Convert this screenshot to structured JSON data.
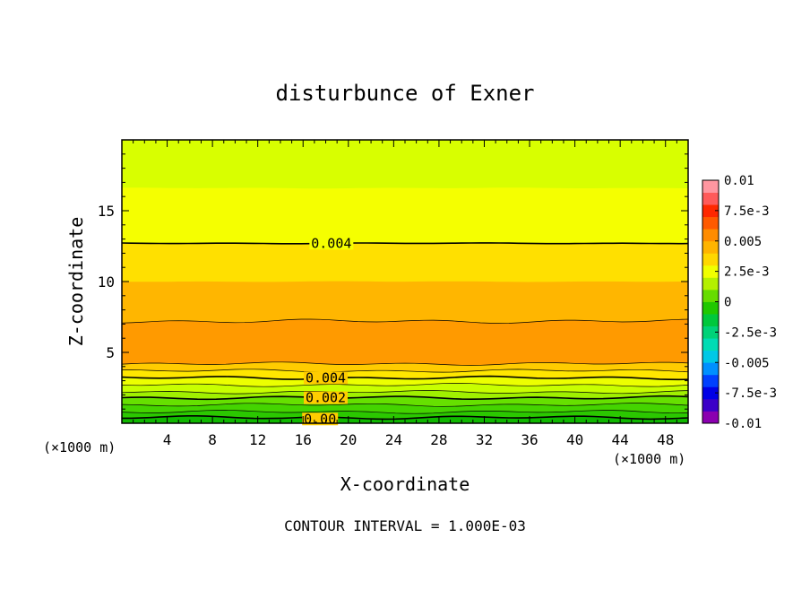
{
  "chart_data": {
    "type": "contour",
    "title": "disturbunce of Exner",
    "xlabel": "X-coordinate",
    "ylabel": "Z-coordinate",
    "x_unit_note": "(×1000 m)",
    "x_unit_note_bottom": "(×1000 m)",
    "footer": "CONTOUR INTERVAL = 1.000E-03",
    "xlim": [
      0,
      50
    ],
    "ylim": [
      0,
      20
    ],
    "x_ticks": [
      4,
      8,
      12,
      16,
      20,
      24,
      28,
      32,
      36,
      40,
      44,
      48
    ],
    "y_ticks": [
      5,
      10,
      15
    ],
    "contour_interval": 0.001,
    "contour_labels": [
      {
        "text": "0.004",
        "x": 18.5,
        "z": 12.7
      },
      {
        "text": "0.004",
        "x": 18.0,
        "z": 3.2
      },
      {
        "text": "0.002",
        "x": 18.0,
        "z": 1.8
      },
      {
        "text": "0.00",
        "x": 17.5,
        "z": 0.3
      }
    ],
    "bands": [
      {
        "z_top": 20.0,
        "value": 0.003,
        "color": "#d8ff00"
      },
      {
        "z_top": 16.6,
        "value": 0.0038,
        "color": "#f5ff00"
      },
      {
        "z_top": 12.7,
        "value": 0.0042,
        "color": "#ffe000"
      },
      {
        "z_top": 10.0,
        "value": 0.0048,
        "color": "#ffb600"
      },
      {
        "z_top": 7.2,
        "value": 0.0053,
        "color": "#ff9a00"
      },
      {
        "z_top": 4.2,
        "value": 0.0047,
        "color": "#ffcc00"
      },
      {
        "z_top": 3.7,
        "value": 0.0043,
        "color": "#ffe600"
      },
      {
        "z_top": 3.2,
        "value": 0.0038,
        "color": "#ecff00"
      },
      {
        "z_top": 2.7,
        "value": 0.0032,
        "color": "#c8ff00"
      },
      {
        "z_top": 2.2,
        "value": 0.0026,
        "color": "#a0f000"
      },
      {
        "z_top": 1.8,
        "value": 0.0022,
        "color": "#66e000"
      },
      {
        "z_top": 1.3,
        "value": 0.0016,
        "color": "#44d400"
      },
      {
        "z_top": 0.8,
        "value": 0.0011,
        "color": "#2bc800"
      },
      {
        "z_top": 0.4,
        "value": 0.0005,
        "color": "#10b800"
      }
    ],
    "contour_lines": [
      {
        "z": 12.7,
        "weight": "bold"
      },
      {
        "z": 7.2,
        "weight": "thin"
      },
      {
        "z": 4.2,
        "weight": "thin"
      },
      {
        "z": 3.7,
        "weight": "thin"
      },
      {
        "z": 3.2,
        "weight": "bold"
      },
      {
        "z": 2.7,
        "weight": "thin"
      },
      {
        "z": 2.2,
        "weight": "thin"
      },
      {
        "z": 1.8,
        "weight": "bold"
      },
      {
        "z": 1.3,
        "weight": "thin"
      },
      {
        "z": 0.8,
        "weight": "thin"
      },
      {
        "z": 0.4,
        "weight": "bold"
      }
    ],
    "colorbar": {
      "labels": [
        "0.01",
        "7.5e-3",
        "0.005",
        "2.5e-3",
        "0",
        "-2.5e-3",
        "-0.005",
        "-7.5e-3",
        "-0.01"
      ],
      "colors": [
        "#8b00b0",
        "#3c00c8",
        "#0000e6",
        "#0040ff",
        "#0090ff",
        "#00c8e6",
        "#00dcb4",
        "#00d278",
        "#00c83c",
        "#20c800",
        "#66dc00",
        "#b4f000",
        "#f0ff00",
        "#ffd700",
        "#ffb400",
        "#ff8c00",
        "#ff5a00",
        "#ff2800",
        "#ff5a5a",
        "#ff96a0"
      ]
    }
  }
}
